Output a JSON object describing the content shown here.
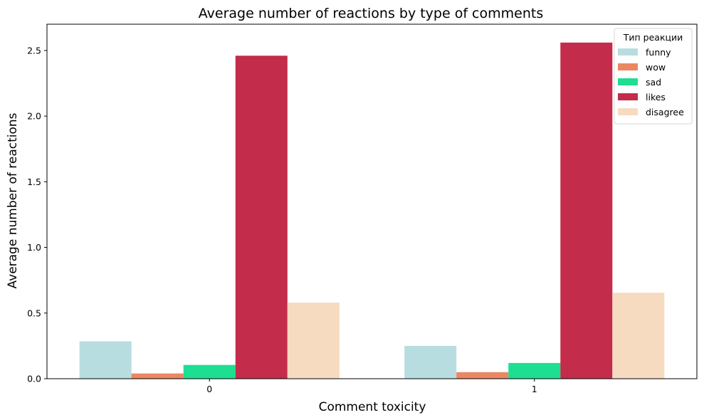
{
  "chart_data": {
    "type": "bar",
    "title": "Average number of reactions by type of comments",
    "xlabel": "Comment toxicity",
    "ylabel": "Average number of reactions",
    "categories": [
      "0",
      "1"
    ],
    "ylim": [
      0,
      2.7
    ],
    "yticks": [
      "0.0",
      "0.5",
      "1.0",
      "1.5",
      "2.0",
      "2.5"
    ],
    "grid": false,
    "legend": {
      "title": "Тип реакции",
      "placement": "top-right"
    },
    "series": [
      {
        "name": "funny",
        "color": "#b8dde1",
        "values": [
          0.285,
          0.25
        ]
      },
      {
        "name": "wow",
        "color": "#ea8863",
        "values": [
          0.04,
          0.05
        ]
      },
      {
        "name": "sad",
        "color": "#1ede91",
        "values": [
          0.105,
          0.12
        ]
      },
      {
        "name": "likes",
        "color": "#c32c4a",
        "values": [
          2.46,
          2.56
        ]
      },
      {
        "name": "disagree",
        "color": "#f6dbc1",
        "values": [
          0.58,
          0.655
        ]
      }
    ]
  }
}
